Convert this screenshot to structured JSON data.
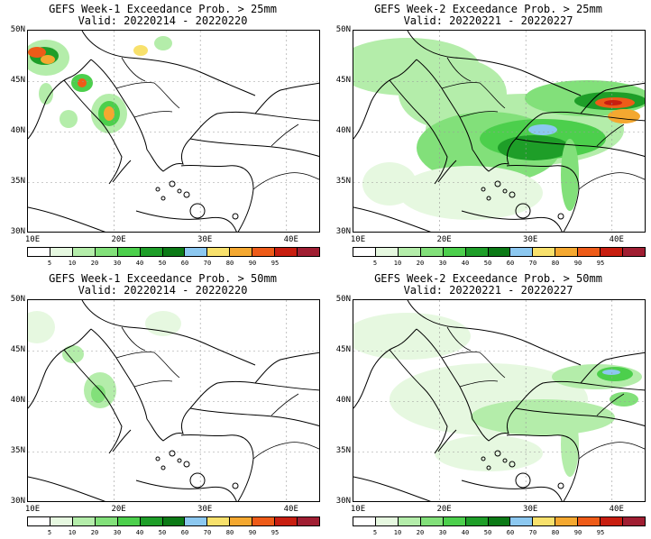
{
  "panels": [
    {
      "title": "GEFS Week-1 Exceedance Prob. > 25mm",
      "valid": "Valid: 20220214 - 20220220"
    },
    {
      "title": "GEFS Week-2 Exceedance Prob. > 25mm",
      "valid": "Valid: 20220221 - 20220227"
    },
    {
      "title": "GEFS Week-1 Exceedance Prob. > 50mm",
      "valid": "Valid: 20220214 - 20220220"
    },
    {
      "title": "GEFS Week-2 Exceedance Prob. > 50mm",
      "valid": "Valid: 20220221 - 20220227"
    }
  ],
  "axes": {
    "lat_labels": [
      "50N",
      "45N",
      "40N",
      "35N",
      "30N"
    ],
    "lon_labels": [
      "10E",
      "20E",
      "30E",
      "40E"
    ]
  },
  "colorbar": {
    "levels": [
      "5",
      "10",
      "20",
      "30",
      "40",
      "50",
      "60",
      "70",
      "80",
      "90",
      "95"
    ],
    "colors": [
      "#ffffff",
      "#e6f8e0",
      "#b4edaa",
      "#82e07a",
      "#4ccf4c",
      "#1e9e28",
      "#0b7a16",
      "#8cc8f0",
      "#f8e16c",
      "#f4a830",
      "#ee5b18",
      "#c81e10",
      "#a01e32"
    ]
  }
}
